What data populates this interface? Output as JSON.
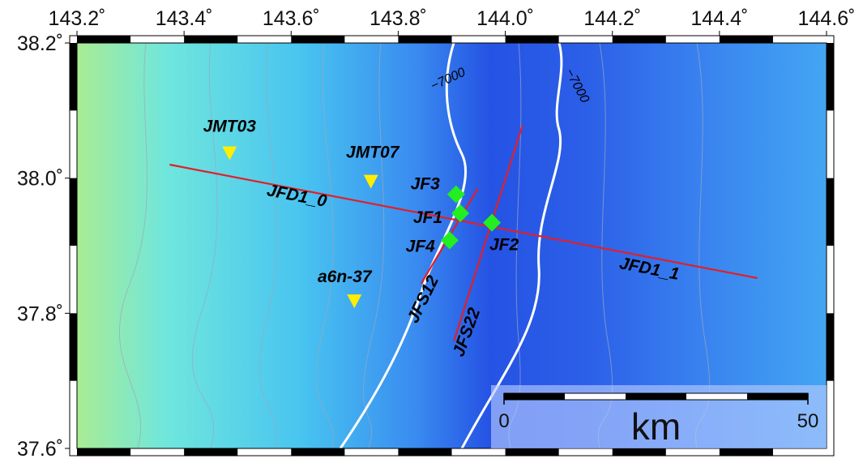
{
  "map": {
    "xlim": [
      143.2,
      144.6
    ],
    "ylim": [
      37.6,
      38.2
    ],
    "xticks": [
      {
        "value": 143.2,
        "label": "143.2˚"
      },
      {
        "value": 143.4,
        "label": "143.4˚"
      },
      {
        "value": 143.6,
        "label": "143.6˚"
      },
      {
        "value": 143.8,
        "label": "143.8˚"
      },
      {
        "value": 144.0,
        "label": "144.0˚"
      },
      {
        "value": 144.2,
        "label": "144.2˚"
      },
      {
        "value": 144.4,
        "label": "144.4˚"
      },
      {
        "value": 144.6,
        "label": "144.6˚"
      }
    ],
    "yticks": [
      {
        "value": 38.2,
        "label": "38.2˚"
      },
      {
        "value": 38.0,
        "label": "38.0˚"
      },
      {
        "value": 37.8,
        "label": "37.8˚"
      },
      {
        "value": 37.6,
        "label": "37.6˚"
      }
    ],
    "stations": [
      {
        "name": "JMT03",
        "lon": 143.485,
        "lat": 38.036
      },
      {
        "name": "JMT07",
        "lon": 143.749,
        "lat": 37.994
      },
      {
        "name": "a6n-37",
        "lon": 143.718,
        "lat": 37.817
      }
    ],
    "station_color": "#ffee00",
    "sites": [
      {
        "name": "JF3",
        "lon": 143.908,
        "lat": 37.976
      },
      {
        "name": "JF1",
        "lon": 143.916,
        "lat": 37.948
      },
      {
        "name": "JF4",
        "lon": 143.896,
        "lat": 37.908
      },
      {
        "name": "JF2",
        "lon": 143.975,
        "lat": 37.934
      }
    ],
    "site_color": "#22ee22",
    "profiles": [
      {
        "labels": [
          "JFD1_0",
          "JFD1_1"
        ],
        "lon": [
          143.373,
          144.471
        ],
        "lat": [
          38.02,
          37.852
        ]
      },
      {
        "labels": [
          "JFS12"
        ],
        "lon": [
          143.843,
          143.949
        ],
        "lat": [
          37.844,
          37.985
        ]
      },
      {
        "labels": [
          "JFS22"
        ],
        "lon": [
          143.904,
          144.032
        ],
        "lat": [
          37.759,
          38.078
        ]
      }
    ],
    "profile_color": "#e0202a",
    "contour_labels": [
      "−7000",
      "−7000"
    ],
    "scale_bar": {
      "ticks": [
        0,
        50
      ],
      "unit": "km"
    }
  }
}
